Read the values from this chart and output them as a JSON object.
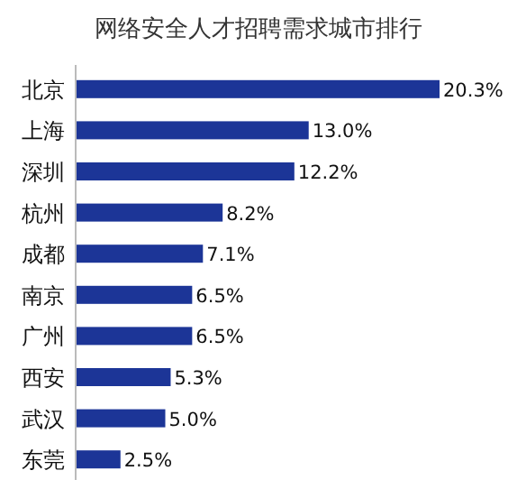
{
  "chart_data": {
    "type": "bar",
    "orientation": "horizontal",
    "title": "网络安全人才招聘需求城市排行",
    "categories": [
      "北京",
      "上海",
      "深圳",
      "杭州",
      "成都",
      "南京",
      "广州",
      "西安",
      "武汉",
      "东莞"
    ],
    "values": [
      20.3,
      13.0,
      12.2,
      8.2,
      7.1,
      6.5,
      6.5,
      5.3,
      5.0,
      2.5
    ],
    "value_labels": [
      "20.3%",
      "13.0%",
      "12.2%",
      "8.2%",
      "7.1%",
      "6.5%",
      "6.5%",
      "5.3%",
      "5.0%",
      "2.5%"
    ],
    "color": "#1c3597"
  }
}
